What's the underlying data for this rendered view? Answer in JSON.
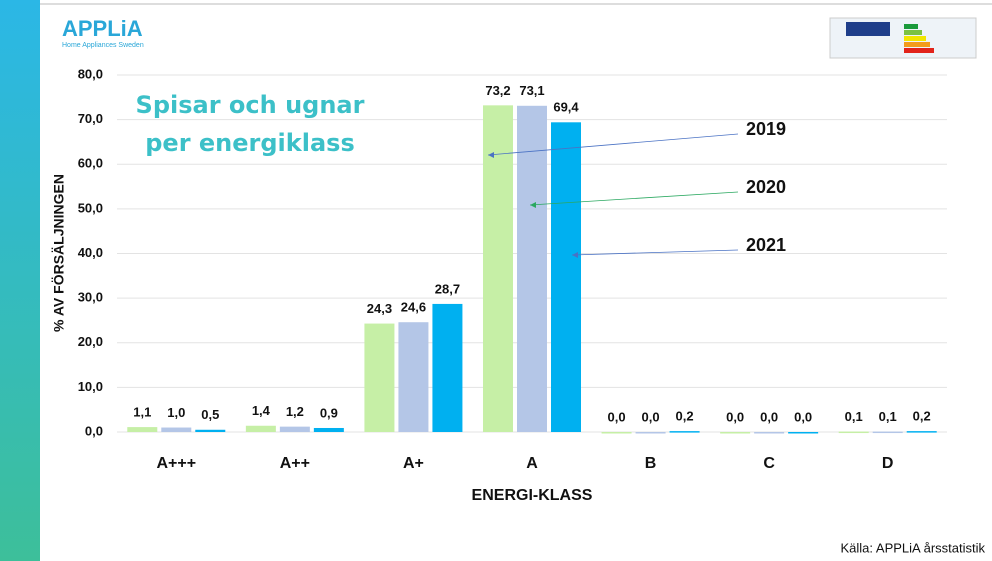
{
  "chart_data": {
    "type": "bar",
    "logo": "APPLiA",
    "logo_subtitle": "Home Appliances Sweden",
    "title": "Spisar och ugnar per energiklass",
    "y_label": "% AV FÖRSÄLJNINGEN",
    "x_label": "ENERGI-KLASS",
    "source": "Källa: APPLiA årsstatistik",
    "categories": [
      "A+++",
      "A++",
      "A+",
      "A",
      "B",
      "C",
      "D"
    ],
    "series": [
      {
        "name": "2019",
        "color": "#c6efa6",
        "values": [
          1.1,
          1.4,
          24.3,
          73.2,
          0.0,
          0.0,
          0.1
        ],
        "value_labels": [
          "1,1",
          "1,4",
          "24,3",
          "73,2",
          "0,0",
          "0,0",
          "0,1"
        ]
      },
      {
        "name": "2020",
        "color": "#b4c6e7",
        "values": [
          1.0,
          1.2,
          24.6,
          73.1,
          0.0,
          0.0,
          0.1
        ],
        "value_labels": [
          "1,0",
          "1,2",
          "24,6",
          "73,1",
          "0,0",
          "0,0",
          "0,1"
        ]
      },
      {
        "name": "2021",
        "color": "#00b0f0",
        "values": [
          0.5,
          0.9,
          28.7,
          69.4,
          0.2,
          0.0,
          0.2
        ],
        "value_labels": [
          "0,5",
          "0,9",
          "28,7",
          "69,4",
          "0,2",
          "0,0",
          "0,2"
        ]
      }
    ],
    "ylim": [
      0,
      80
    ],
    "yticks": [
      {
        "value": 0,
        "label": "0,0"
      },
      {
        "value": 10,
        "label": "10,0"
      },
      {
        "value": 20,
        "label": "20,0"
      },
      {
        "value": 30,
        "label": "30,0"
      },
      {
        "value": 40,
        "label": "40,0"
      },
      {
        "value": 50,
        "label": "50,0"
      },
      {
        "value": 60,
        "label": "60,0"
      },
      {
        "value": 70,
        "label": "70,0"
      },
      {
        "value": 80,
        "label": "80,0"
      }
    ],
    "grid": true
  }
}
